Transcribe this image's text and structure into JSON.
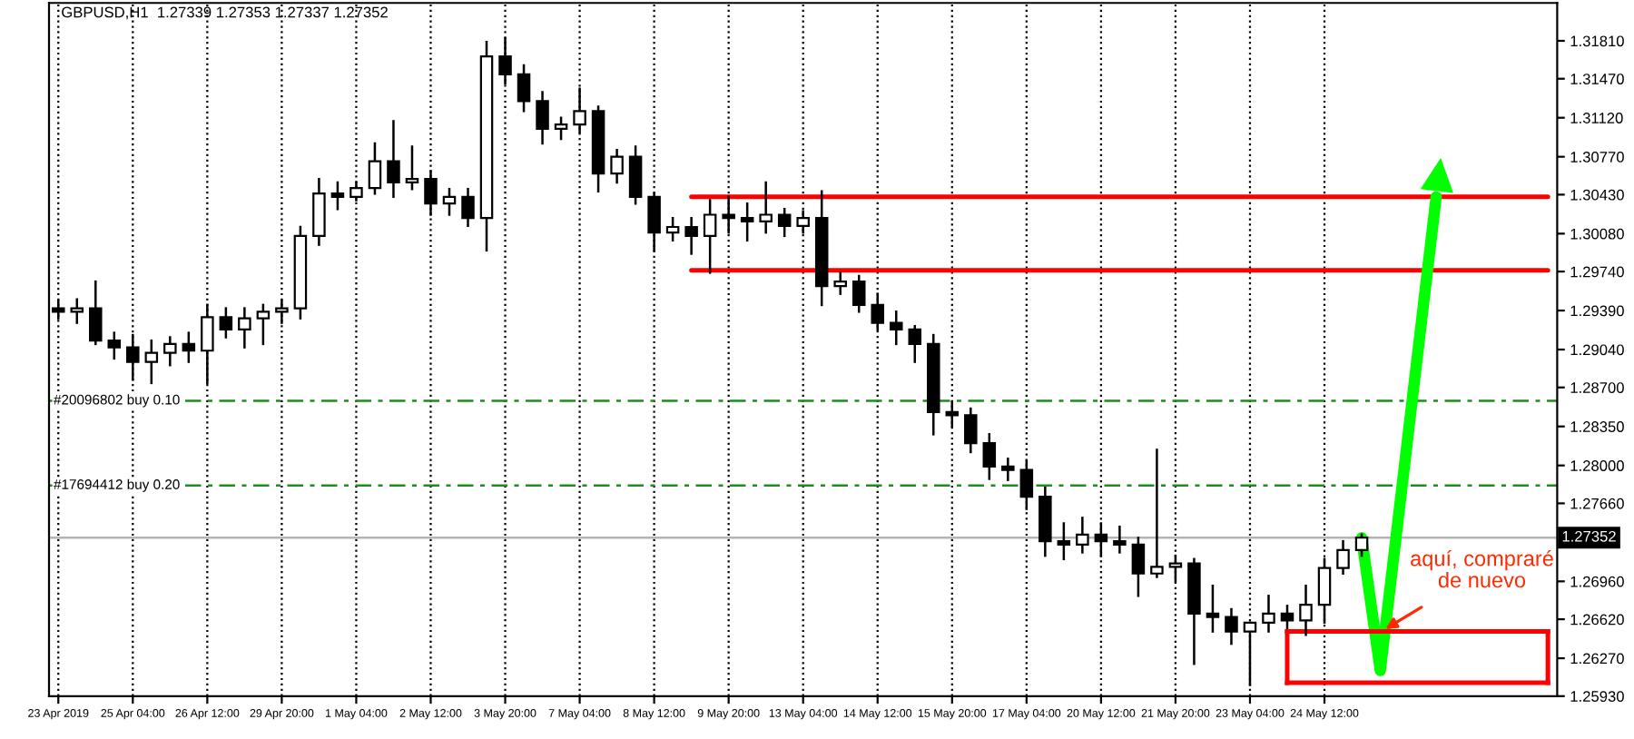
{
  "chart_data": {
    "type": "candlestick",
    "title": "GBPUSD,H1  1.27339 1.27353 1.27337 1.27352",
    "color": "#000000",
    "categories": [
      "23 Apr 2019",
      null,
      null,
      null,
      "25 Apr 04:00",
      null,
      null,
      null,
      "26 Apr 12:00",
      null,
      null,
      null,
      "29 Apr 20:00",
      null,
      null,
      null,
      "1 May 04:00",
      null,
      null,
      null,
      "2 May 12:00",
      null,
      null,
      null,
      "3 May 20:00",
      null,
      null,
      null,
      "7 May 04:00",
      null,
      null,
      null,
      "8 May 12:00",
      null,
      null,
      null,
      "9 May 20:00",
      null,
      null,
      null,
      "13 May 04:00",
      null,
      null,
      null,
      "14 May 12:00",
      null,
      null,
      null,
      "15 May 20:00",
      null,
      null,
      null,
      "17 May 04:00",
      null,
      null,
      null,
      "20 May 12:00",
      null,
      null,
      null,
      "21 May 20:00",
      null,
      null,
      null,
      "23 May 04:00",
      null,
      null,
      null,
      "24 May 12:00",
      null,
      null,
      null,
      null,
      null,
      null,
      null,
      null,
      null,
      null,
      null,
      null
    ],
    "ohlc": [
      [
        1.2941,
        1.2948,
        1.2932,
        1.2938
      ],
      [
        1.2938,
        1.2949,
        1.2928,
        1.2941
      ],
      [
        1.2941,
        1.2965,
        1.2909,
        1.2912
      ],
      [
        1.2912,
        1.2919,
        1.2896,
        1.2906
      ],
      [
        1.2906,
        1.2917,
        1.2877,
        1.2893
      ],
      [
        1.2893,
        1.2912,
        1.2874,
        1.2901
      ],
      [
        1.2901,
        1.2915,
        1.289,
        1.2909
      ],
      [
        1.2909,
        1.2919,
        1.2893,
        1.2903
      ],
      [
        1.2903,
        1.2944,
        1.2874,
        1.2933
      ],
      [
        1.2933,
        1.2941,
        1.2915,
        1.2922
      ],
      [
        1.2922,
        1.2941,
        1.2906,
        1.2932
      ],
      [
        1.2932,
        1.2944,
        1.2909,
        1.2938
      ],
      [
        1.2938,
        1.2948,
        1.2928,
        1.2941
      ],
      [
        1.2941,
        1.3014,
        1.2932,
        1.3006
      ],
      [
        1.3006,
        1.3057,
        1.2998,
        1.3044
      ],
      [
        1.3044,
        1.3054,
        1.303,
        1.3041
      ],
      [
        1.3041,
        1.3054,
        1.3038,
        1.3049
      ],
      [
        1.3049,
        1.3089,
        1.3044,
        1.3073
      ],
      [
        1.3073,
        1.3109,
        1.3041,
        1.3054
      ],
      [
        1.3054,
        1.3086,
        1.3048,
        1.3057
      ],
      [
        1.3057,
        1.3064,
        1.3025,
        1.3035
      ],
      [
        1.3035,
        1.3048,
        1.3025,
        1.3041
      ],
      [
        1.3041,
        1.3048,
        1.3015,
        1.3022
      ],
      [
        1.3022,
        1.318,
        1.2993,
        1.3167
      ],
      [
        1.3167,
        1.3183,
        1.3143,
        1.3151
      ],
      [
        1.3151,
        1.3159,
        1.3118,
        1.3127
      ],
      [
        1.3127,
        1.3135,
        1.3089,
        1.3102
      ],
      [
        1.3102,
        1.3112,
        1.3093,
        1.3106
      ],
      [
        1.3106,
        1.3138,
        1.3099,
        1.3118
      ],
      [
        1.3118,
        1.3122,
        1.3046,
        1.3062
      ],
      [
        1.3062,
        1.3083,
        1.3054,
        1.3077
      ],
      [
        1.3077,
        1.3086,
        1.3035,
        1.3041
      ],
      [
        1.3041,
        1.3044,
        1.2993,
        1.3009
      ],
      [
        1.3009,
        1.3022,
        1.3002,
        1.3014
      ],
      [
        1.3014,
        1.3022,
        1.299,
        1.3006
      ],
      [
        1.3006,
        1.3038,
        1.2973,
        1.3025
      ],
      [
        1.3025,
        1.3041,
        1.3009,
        1.3022
      ],
      [
        1.3022,
        1.3035,
        1.3002,
        1.3019
      ],
      [
        1.3019,
        1.3054,
        1.3009,
        1.3025
      ],
      [
        1.3025,
        1.303,
        1.3006,
        1.3015
      ],
      [
        1.3015,
        1.3028,
        1.3009,
        1.3022
      ],
      [
        1.3022,
        1.3046,
        1.2944,
        1.2961
      ],
      [
        1.2961,
        1.2973,
        1.2954,
        1.2965
      ],
      [
        1.2965,
        1.297,
        1.2938,
        1.2944
      ],
      [
        1.2944,
        1.2954,
        1.2922,
        1.2928
      ],
      [
        1.2928,
        1.2938,
        1.2909,
        1.2922
      ],
      [
        1.2922,
        1.2925,
        1.2893,
        1.2909
      ],
      [
        1.2909,
        1.2917,
        1.2828,
        1.2848
      ],
      [
        1.2848,
        1.2857,
        1.2835,
        1.2845
      ],
      [
        1.2845,
        1.2851,
        1.2812,
        1.282
      ],
      [
        1.282,
        1.2828,
        1.2788,
        1.2799
      ],
      [
        1.2799,
        1.2806,
        1.2787,
        1.2796
      ],
      [
        1.2796,
        1.2804,
        1.2761,
        1.2772
      ],
      [
        1.2772,
        1.278,
        1.2719,
        1.2732
      ],
      [
        1.2732,
        1.2748,
        1.2716,
        1.2729
      ],
      [
        1.2729,
        1.2753,
        1.2722,
        1.2738
      ],
      [
        1.2738,
        1.2748,
        1.2719,
        1.2732
      ],
      [
        1.2732,
        1.2745,
        1.2722,
        1.2729
      ],
      [
        1.2729,
        1.2735,
        1.2683,
        1.2703
      ],
      [
        1.2703,
        1.2814,
        1.27,
        1.2709
      ],
      [
        1.2709,
        1.2719,
        1.2696,
        1.2712
      ],
      [
        1.2712,
        1.2716,
        1.2622,
        1.2667
      ],
      [
        1.2667,
        1.2692,
        1.2651,
        1.2664
      ],
      [
        1.2664,
        1.2671,
        1.264,
        1.2651
      ],
      [
        1.2651,
        1.2659,
        1.2603,
        1.2659
      ],
      [
        1.2659,
        1.2683,
        1.2651,
        1.2667
      ],
      [
        1.2667,
        1.2674,
        1.2654,
        1.2661
      ],
      [
        1.2661,
        1.2692,
        1.2648,
        1.2675
      ],
      [
        1.2675,
        1.2716,
        1.2659,
        1.2708
      ],
      [
        1.2708,
        1.2732,
        1.2703,
        1.2724
      ],
      [
        1.2724,
        1.2738,
        1.2719,
        1.27352
      ],
      null,
      null,
      null,
      null,
      null,
      null,
      null,
      null,
      null,
      null
    ],
    "series": [
      {
        "type": "line",
        "color": "#ff0000",
        "values": [
          null,
          null,
          null,
          null,
          null,
          null,
          null,
          null,
          null,
          null,
          null,
          null,
          null,
          null,
          null,
          null,
          null,
          null,
          null,
          null,
          null,
          null,
          null,
          null,
          null,
          null,
          null,
          null,
          null,
          null,
          null,
          null,
          null,
          null,
          1.3041,
          1.3041,
          1.3041,
          1.3041,
          1.3041,
          1.3041,
          1.3041,
          1.3041,
          1.3041,
          1.3041,
          1.3041,
          1.3041,
          1.3041,
          1.3041,
          1.3041,
          1.3041,
          1.3041,
          1.3041,
          1.3041,
          1.3041,
          1.3041,
          1.3041,
          1.3041,
          1.3041,
          1.3041,
          1.3041,
          1.3041,
          1.3041,
          1.3041,
          1.3041,
          1.3041,
          1.3041,
          1.3041,
          1.3041,
          1.3041,
          1.3041,
          1.3041,
          1.3041,
          1.3041,
          1.3041,
          1.3041,
          1.3041,
          1.3041,
          1.3041,
          1.3041,
          1.3041,
          1.3041
        ]
      },
      {
        "type": "line",
        "color": "#ff0000",
        "values": [
          null,
          null,
          null,
          null,
          null,
          null,
          null,
          null,
          null,
          null,
          null,
          null,
          null,
          null,
          null,
          null,
          null,
          null,
          null,
          null,
          null,
          null,
          null,
          null,
          null,
          null,
          null,
          null,
          null,
          null,
          null,
          null,
          null,
          null,
          1.2975,
          1.2975,
          1.2975,
          1.2975,
          1.2975,
          1.2975,
          1.2975,
          1.2975,
          1.2975,
          1.2975,
          1.2975,
          1.2975,
          1.2975,
          1.2975,
          1.2975,
          1.2975,
          1.2975,
          1.2975,
          1.2975,
          1.2975,
          1.2975,
          1.2975,
          1.2975,
          1.2975,
          1.2975,
          1.2975,
          1.2975,
          1.2975,
          1.2975,
          1.2975,
          1.2975,
          1.2975,
          1.2975,
          1.2975,
          1.2975,
          1.2975,
          1.2975,
          1.2975,
          1.2975,
          1.2975,
          1.2975,
          1.2975,
          1.2975,
          1.2975,
          1.2975,
          1.2975,
          1.2975
        ]
      },
      {
        "type": "line",
        "color": "#00ff00",
        "values": [
          null,
          null,
          null,
          null,
          null,
          null,
          null,
          null,
          null,
          null,
          null,
          null,
          null,
          null,
          null,
          null,
          null,
          null,
          null,
          null,
          null,
          null,
          null,
          null,
          null,
          null,
          null,
          null,
          null,
          null,
          null,
          null,
          null,
          null,
          null,
          null,
          null,
          null,
          null,
          null,
          null,
          null,
          null,
          null,
          null,
          null,
          null,
          null,
          null,
          null,
          null,
          null,
          null,
          null,
          null,
          null,
          null,
          null,
          null,
          null,
          null,
          null,
          null,
          null,
          null,
          null,
          null,
          null,
          null,
          null,
          1.2735,
          1.2616,
          null,
          null,
          1.3041,
          null,
          null,
          null,
          null,
          null,
          null
        ]
      },
      {
        "type": "line",
        "color": "#ff0000",
        "values": [
          null,
          null,
          null,
          null,
          null,
          null,
          null,
          null,
          null,
          null,
          null,
          null,
          null,
          null,
          null,
          null,
          null,
          null,
          null,
          null,
          null,
          null,
          null,
          null,
          null,
          null,
          null,
          null,
          null,
          null,
          null,
          null,
          null,
          null,
          null,
          null,
          null,
          null,
          null,
          null,
          null,
          null,
          null,
          null,
          null,
          null,
          null,
          null,
          null,
          null,
          null,
          null,
          null,
          null,
          null,
          null,
          null,
          null,
          null,
          null,
          null,
          null,
          null,
          null,
          null,
          null,
          1.2651,
          1.2651,
          1.2651,
          1.2651,
          1.2651,
          1.2651,
          1.2651,
          1.2651,
          1.2651,
          1.2651,
          1.2651,
          1.2651,
          1.2651,
          1.2651,
          1.2651
        ]
      },
      {
        "type": "line",
        "color": "#ff0000",
        "values": [
          null,
          null,
          null,
          null,
          null,
          null,
          null,
          null,
          null,
          null,
          null,
          null,
          null,
          null,
          null,
          null,
          null,
          null,
          null,
          null,
          null,
          null,
          null,
          null,
          null,
          null,
          null,
          null,
          null,
          null,
          null,
          null,
          null,
          null,
          null,
          null,
          null,
          null,
          null,
          null,
          null,
          null,
          null,
          null,
          null,
          null,
          null,
          null,
          null,
          null,
          null,
          null,
          null,
          null,
          null,
          null,
          null,
          null,
          null,
          null,
          null,
          null,
          null,
          null,
          null,
          null,
          1.2605,
          1.2605,
          1.2605,
          1.2605,
          1.2605,
          1.2605,
          1.2605,
          1.2605,
          1.2605,
          1.2605,
          1.2605,
          1.2605,
          1.2605,
          1.2605,
          1.2605
        ]
      }
    ],
    "ref_lines": [
      {
        "axis": "y",
        "value": 1.2858,
        "label": "#20096802 buy 0.10",
        "color": "#1e8c1e",
        "line_style": "dashed"
      },
      {
        "axis": "y",
        "value": 1.2782,
        "label": "#17694412 buy 0.20",
        "color": "#1e8c1e",
        "line_style": "dashed"
      },
      {
        "axis": "y",
        "value": 1.27352,
        "label": "1.27352",
        "color": "#b4b4b4",
        "line_style": "solid"
      }
    ],
    "annotations": [
      {
        "text": "aquí, compraré\nde nuevo",
        "y": 1.2651
      }
    ],
    "ylim": [
      1.2593,
      1.3215
    ],
    "yticks": [
      {
        "value": 1.3181,
        "label": "1.31810"
      },
      {
        "value": 1.3147,
        "label": "1.31470"
      },
      {
        "value": 1.3112,
        "label": "1.31120"
      },
      {
        "value": 1.3077,
        "label": "1.30770"
      },
      {
        "value": 1.3043,
        "label": "1.30430"
      },
      {
        "value": 1.3008,
        "label": "1.30080"
      },
      {
        "value": 1.2974,
        "label": "1.29740"
      },
      {
        "value": 1.2939,
        "label": "1.29390"
      },
      {
        "value": 1.2904,
        "label": "1.29040"
      },
      {
        "value": 1.287,
        "label": "1.28700"
      },
      {
        "value": 1.2835,
        "label": "1.28350"
      },
      {
        "value": 1.28,
        "label": "1.28000"
      },
      {
        "value": 1.2766,
        "label": "1.27660"
      },
      {
        "value": 1.2696,
        "label": "1.26960"
      },
      {
        "value": 1.2662,
        "label": "1.26620"
      },
      {
        "value": 1.2627,
        "label": "1.26270"
      },
      {
        "value": 1.2593,
        "label": "1.25930"
      }
    ],
    "grid": "x",
    "legend": false
  }
}
